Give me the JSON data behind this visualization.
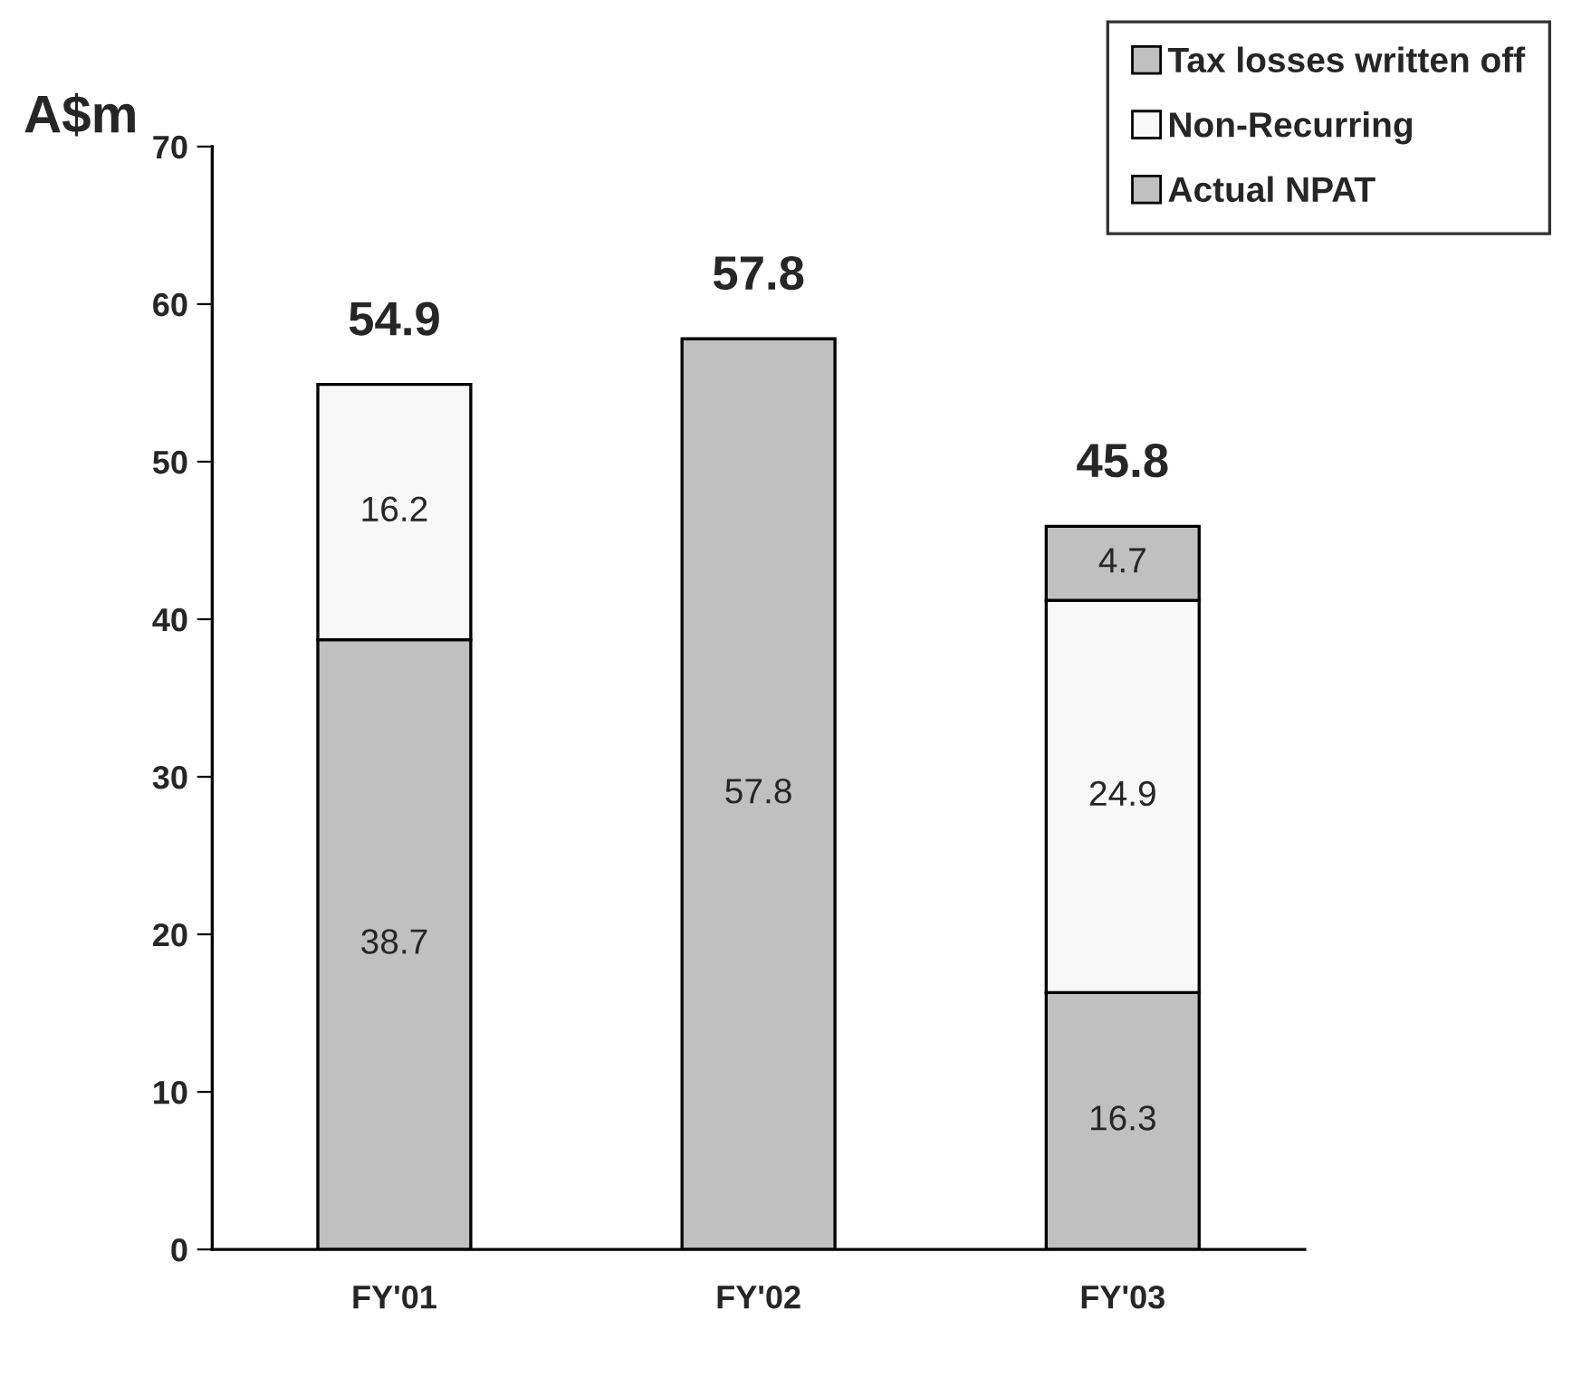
{
  "chart_data": {
    "type": "bar",
    "stacked": true,
    "ylabel": "A$m",
    "categories": [
      "FY'01",
      "FY'02",
      "FY'03"
    ],
    "series": [
      {
        "name": "Actual NPAT",
        "color": "#c0c0c0",
        "values": [
          38.7,
          57.8,
          16.3
        ],
        "value_labels": [
          "38.7",
          "57.8",
          "16.3"
        ]
      },
      {
        "name": "Non-Recurring",
        "color": "#f8f8f8",
        "values": [
          16.2,
          null,
          24.9
        ],
        "value_labels": [
          "16.2",
          null,
          "24.9"
        ]
      },
      {
        "name": "Tax losses written off",
        "color": "#c0c0c0",
        "values": [
          null,
          null,
          4.7
        ],
        "value_labels": [
          null,
          null,
          "4.7"
        ]
      }
    ],
    "totals": [
      "54.9",
      "57.8",
      "45.8"
    ],
    "ylim": [
      0,
      70
    ],
    "yticks": [
      0,
      10,
      20,
      30,
      40,
      50,
      60,
      70
    ],
    "grid": false,
    "legend": "top right"
  }
}
